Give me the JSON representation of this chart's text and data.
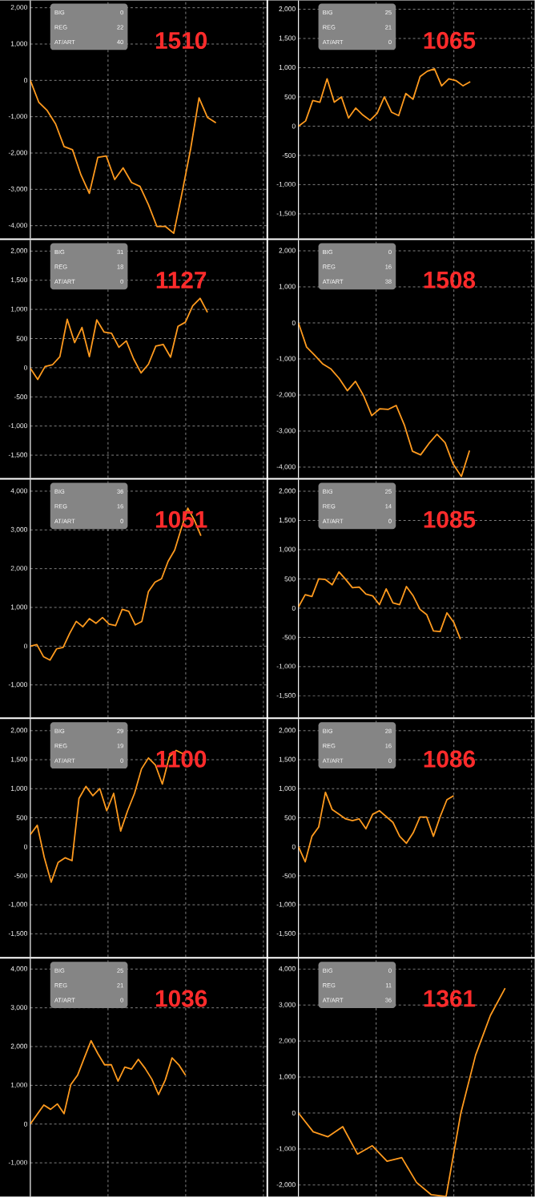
{
  "chart_data": [
    {
      "type": "line",
      "categories": [
        null,
        null,
        null,
        null,
        null,
        null,
        null,
        null,
        null,
        null,
        null,
        null,
        null,
        null,
        null,
        null,
        null,
        null,
        null,
        null,
        null,
        null,
        null,
        null,
        null,
        null,
        null,
        null,
        null
      ],
      "series": [
        {
          "color": "#ff9a1e",
          "values": [
            0,
            -600,
            -830,
            -1200,
            -1820,
            -1910,
            -2600,
            -3110,
            -2120,
            -2080,
            -2730,
            -2410,
            -2810,
            -2920,
            -3420,
            -4020,
            -4020,
            -4210,
            -3080,
            -1890,
            -480,
            -1020,
            -1170,
            null,
            null,
            null,
            null,
            null,
            null
          ]
        }
      ],
      "ylim": [
        -4350,
        2200
      ],
      "yticks": [
        {
          "value": -4000,
          "label": "-4,000"
        },
        {
          "value": -3000,
          "label": "-3,000"
        },
        {
          "value": -2000,
          "label": "-2,000"
        },
        {
          "value": -1000,
          "label": "-1,000"
        },
        0,
        {
          "value": 1000,
          "label": "1,000"
        },
        {
          "value": 2000,
          "label": "2,000"
        }
      ],
      "grid": true,
      "tick_labels": "y",
      "annotations": [
        "1510",
        "BIG",
        "0",
        "REG",
        "22",
        "AT/ART",
        "40"
      ]
    },
    {
      "type": "line",
      "categories": [
        null,
        null,
        null,
        null,
        null,
        null,
        null,
        null,
        null,
        null,
        null,
        null,
        null,
        null,
        null,
        null,
        null,
        null,
        null,
        null,
        null,
        null,
        null,
        null,
        null,
        null,
        null,
        null,
        null,
        null,
        null,
        null,
        null,
        null
      ],
      "series": [
        {
          "color": "#ff9a1e",
          "values": [
            0,
            90,
            440,
            410,
            810,
            410,
            500,
            140,
            310,
            190,
            100,
            220,
            500,
            240,
            180,
            560,
            460,
            850,
            940,
            980,
            690,
            810,
            780,
            690,
            760,
            null,
            null,
            null,
            null,
            null,
            null,
            null,
            null,
            null
          ]
        }
      ],
      "ylim": [
        -1920,
        2150
      ],
      "yticks": [
        {
          "value": -1500,
          "label": "-1,500"
        },
        {
          "value": -1000,
          "label": "-1,000"
        },
        -500,
        0,
        500,
        {
          "value": 1000,
          "label": "1,000"
        },
        {
          "value": 1500,
          "label": "1,500"
        },
        {
          "value": 2000,
          "label": "2,000"
        }
      ],
      "grid": true,
      "tick_labels": "y",
      "annotations": [
        "1065",
        "BIG",
        "25",
        "REG",
        "21",
        "AT/ART",
        "0"
      ]
    },
    {
      "type": "line",
      "categories": [
        null,
        null,
        null,
        null,
        null,
        null,
        null,
        null,
        null,
        null,
        null,
        null,
        null,
        null,
        null,
        null,
        null,
        null,
        null,
        null,
        null,
        null,
        null,
        null,
        null,
        null,
        null,
        null,
        null,
        null,
        null,
        null,
        null
      ],
      "series": [
        {
          "color": "#ff9a1e",
          "values": [
            -10,
            -200,
            20,
            50,
            190,
            830,
            430,
            690,
            190,
            820,
            610,
            590,
            350,
            460,
            150,
            -90,
            60,
            370,
            400,
            180,
            710,
            780,
            1060,
            1190,
            950,
            null,
            null,
            null,
            null,
            null,
            null,
            null,
            null
          ]
        }
      ],
      "ylim": [
        -1890,
        2190
      ],
      "yticks": [
        {
          "value": -1500,
          "label": "-1,500"
        },
        {
          "value": -1000,
          "label": "-1,000"
        },
        -500,
        0,
        500,
        {
          "value": 1000,
          "label": "1,000"
        },
        {
          "value": 1500,
          "label": "1,500"
        },
        {
          "value": 2000,
          "label": "2,000"
        }
      ],
      "grid": true,
      "tick_labels": "y",
      "annotations": [
        "1127",
        "BIG",
        "31",
        "REG",
        "18",
        "AT/ART",
        "0"
      ]
    },
    {
      "type": "line",
      "categories": [
        null,
        null,
        null,
        null,
        null,
        null,
        null,
        null,
        null,
        null,
        null,
        null,
        null,
        null,
        null,
        null,
        null,
        null,
        null,
        null,
        null,
        null,
        null,
        null,
        null,
        null,
        null,
        null,
        null,
        null
      ],
      "series": [
        {
          "color": "#ff9a1e",
          "values": [
            0,
            -670,
            -900,
            -1140,
            -1280,
            -1540,
            -1880,
            -1620,
            -2020,
            -2570,
            -2380,
            -2400,
            -2290,
            -2830,
            -3560,
            -3660,
            -3350,
            -3090,
            -3320,
            -3920,
            -4260,
            -3540,
            null,
            null,
            null,
            null,
            null,
            null,
            null,
            null
          ]
        }
      ],
      "ylim": [
        -4300,
        2300
      ],
      "yticks": [
        {
          "value": -4000,
          "label": "-4,000"
        },
        {
          "value": -3000,
          "label": "-3,000"
        },
        {
          "value": -2000,
          "label": "-2,000"
        },
        {
          "value": -1000,
          "label": "-1,000"
        },
        0,
        {
          "value": 1000,
          "label": "1,000"
        },
        {
          "value": 2000,
          "label": "2,000"
        }
      ],
      "grid": true,
      "tick_labels": "y",
      "annotations": [
        "1508",
        "BIG",
        "0",
        "REG",
        "16",
        "AT/ART",
        "38"
      ]
    },
    {
      "type": "line",
      "categories": [
        null,
        null,
        null,
        null,
        null,
        null,
        null,
        null,
        null,
        null,
        null,
        null,
        null,
        null,
        null,
        null,
        null,
        null,
        null,
        null,
        null,
        null,
        null,
        null,
        null,
        null,
        null,
        null,
        null,
        null,
        null,
        null,
        null,
        null,
        null,
        null,
        null
      ],
      "series": [
        {
          "color": "#ff9a1e",
          "values": [
            0,
            40,
            -270,
            -360,
            -70,
            -30,
            330,
            640,
            500,
            710,
            590,
            740,
            570,
            530,
            950,
            900,
            550,
            640,
            1410,
            1650,
            1740,
            2190,
            2480,
            3030,
            3560,
            3250,
            2850,
            null,
            null,
            null,
            null,
            null,
            null,
            null,
            null,
            null,
            null
          ]
        }
      ],
      "ylim": [
        -1840,
        4300
      ],
      "yticks": [
        {
          "value": -1000,
          "label": "-1,000"
        },
        0,
        {
          "value": 1000,
          "label": "1,000"
        },
        {
          "value": 2000,
          "label": "2,000"
        },
        {
          "value": 3000,
          "label": "3,000"
        },
        {
          "value": 4000,
          "label": "4,000"
        }
      ],
      "grid": true,
      "tick_labels": "y",
      "annotations": [
        "1051",
        "BIG",
        "36",
        "REG",
        "16",
        "AT/ART",
        "0"
      ]
    },
    {
      "type": "line",
      "categories": [
        null,
        null,
        null,
        null,
        null,
        null,
        null,
        null,
        null,
        null,
        null,
        null,
        null,
        null,
        null,
        null,
        null,
        null,
        null,
        null,
        null,
        null,
        null,
        null,
        null,
        null,
        null,
        null,
        null,
        null,
        null,
        null,
        null,
        null,
        null,
        null
      ],
      "series": [
        {
          "color": "#ff9a1e",
          "values": [
            20,
            230,
            200,
            500,
            490,
            400,
            620,
            490,
            350,
            360,
            240,
            210,
            60,
            330,
            90,
            60,
            370,
            210,
            -20,
            -110,
            -390,
            -400,
            -80,
            -240,
            -530,
            null,
            null,
            null,
            null,
            null,
            null,
            null,
            null,
            null,
            null,
            null
          ]
        }
      ],
      "ylim": [
        -1870,
        2200
      ],
      "yticks": [
        {
          "value": -1500,
          "label": "-1,500"
        },
        {
          "value": -1000,
          "label": "-1,000"
        },
        -500,
        0,
        500,
        {
          "value": 1000,
          "label": "1,000"
        },
        {
          "value": 1500,
          "label": "1,500"
        },
        {
          "value": 2000,
          "label": "2,000"
        }
      ],
      "grid": true,
      "tick_labels": "y",
      "annotations": [
        "1085",
        "BIG",
        "25",
        "REG",
        "14",
        "AT/ART",
        "0"
      ]
    },
    {
      "type": "line",
      "categories": [
        null,
        null,
        null,
        null,
        null,
        null,
        null,
        null,
        null,
        null,
        null,
        null,
        null,
        null,
        null,
        null,
        null,
        null,
        null,
        null,
        null,
        null,
        null,
        null,
        null,
        null,
        null,
        null,
        null,
        null,
        null,
        null,
        null,
        null,
        null
      ],
      "series": [
        {
          "color": "#ff9a1e",
          "values": [
            210,
            370,
            -180,
            -610,
            -270,
            -190,
            -240,
            830,
            1040,
            880,
            1000,
            620,
            920,
            270,
            620,
            920,
            1340,
            1530,
            1410,
            1080,
            1550,
            1660,
            1600,
            null,
            null,
            null,
            null,
            null,
            null,
            null,
            null,
            null,
            null,
            null,
            null
          ]
        }
      ],
      "ylim": [
        -1900,
        2200
      ],
      "yticks": [
        {
          "value": -1500,
          "label": "-1,500"
        },
        {
          "value": -1000,
          "label": "-1,000"
        },
        -500,
        0,
        500,
        {
          "value": 1000,
          "label": "1,000"
        },
        {
          "value": 1500,
          "label": "1,500"
        },
        {
          "value": 2000,
          "label": "2,000"
        }
      ],
      "grid": true,
      "tick_labels": "y",
      "annotations": [
        "1100",
        "BIG",
        "29",
        "REG",
        "19",
        "AT/ART",
        "0"
      ]
    },
    {
      "type": "line",
      "categories": [
        null,
        null,
        null,
        null,
        null,
        null,
        null,
        null,
        null,
        null,
        null,
        null,
        null,
        null,
        null,
        null,
        null,
        null,
        null,
        null,
        null,
        null,
        null,
        null,
        null,
        null,
        null,
        null,
        null,
        null,
        null,
        null,
        null,
        null,
        null,
        null
      ],
      "series": [
        {
          "color": "#ff9a1e",
          "values": [
            0,
            -260,
            180,
            340,
            940,
            640,
            560,
            480,
            450,
            480,
            310,
            560,
            620,
            520,
            420,
            180,
            60,
            240,
            510,
            510,
            180,
            520,
            810,
            880,
            null,
            null,
            null,
            null,
            null,
            null,
            null,
            null,
            null,
            null,
            null,
            null
          ]
        }
      ],
      "ylim": [
        -1900,
        2200
      ],
      "yticks": [
        {
          "value": -1500,
          "label": "-1,500"
        },
        {
          "value": -1000,
          "label": "-1,000"
        },
        -500,
        0,
        500,
        {
          "value": 1000,
          "label": "1,000"
        },
        {
          "value": 1500,
          "label": "1,500"
        },
        {
          "value": 2000,
          "label": "2,000"
        }
      ],
      "grid": true,
      "tick_labels": "y",
      "annotations": [
        "1086",
        "BIG",
        "28",
        "REG",
        "16",
        "AT/ART",
        "0"
      ]
    },
    {
      "type": "line",
      "categories": [
        null,
        null,
        null,
        null,
        null,
        null,
        null,
        null,
        null,
        null,
        null,
        null,
        null,
        null,
        null,
        null,
        null,
        null,
        null,
        null,
        null,
        null,
        null,
        null,
        null,
        null,
        null,
        null,
        null,
        null,
        null,
        null,
        null,
        null,
        null,
        null
      ],
      "series": [
        {
          "color": "#ff9a1e",
          "values": [
            0,
            250,
            490,
            380,
            520,
            270,
            1020,
            1260,
            1710,
            2150,
            1820,
            1530,
            1530,
            1110,
            1470,
            1420,
            1670,
            1440,
            1160,
            760,
            1140,
            1710,
            1530,
            1260,
            null,
            null,
            null,
            null,
            null,
            null,
            null,
            null,
            null,
            null,
            null,
            null
          ]
        }
      ],
      "ylim": [
        -1870,
        4270
      ],
      "yticks": [
        {
          "value": -1000,
          "label": "-1,000"
        },
        0,
        {
          "value": 1000,
          "label": "1,000"
        },
        {
          "value": 2000,
          "label": "2,000"
        },
        {
          "value": 3000,
          "label": "3,000"
        },
        {
          "value": 4000,
          "label": "4,000"
        }
      ],
      "grid": true,
      "tick_labels": "y",
      "annotations": [
        "1036",
        "BIG",
        "25",
        "REG",
        "21",
        "AT/ART",
        "0"
      ]
    },
    {
      "type": "line",
      "categories": [
        null,
        null,
        null,
        null,
        null,
        null,
        null,
        null,
        null,
        null,
        null,
        null,
        null,
        null,
        null,
        null,
        null
      ],
      "series": [
        {
          "color": "#ff9a1e",
          "values": [
            0,
            -520,
            -660,
            -380,
            -1140,
            -910,
            -1340,
            -1240,
            -1930,
            -2270,
            -2320,
            0,
            1610,
            2710,
            3470,
            null,
            null
          ]
        }
      ],
      "ylim": [
        -2320,
        4290
      ],
      "yticks": [
        {
          "value": -2000,
          "label": "-2,000"
        },
        {
          "value": -1000,
          "label": "-1,000"
        },
        0,
        {
          "value": 1000,
          "label": "1,000"
        },
        {
          "value": 2000,
          "label": "2,000"
        },
        {
          "value": 3000,
          "label": "3,000"
        },
        {
          "value": 4000,
          "label": "4,000"
        }
      ],
      "grid": true,
      "tick_labels": "y",
      "annotations": [
        "1361",
        "BIG",
        "0",
        "REG",
        "11",
        "AT/ART",
        "36"
      ]
    }
  ]
}
